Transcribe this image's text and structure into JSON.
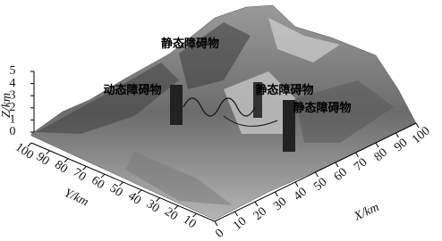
{
  "chart_data": {
    "type": "surface3d",
    "xlabel": "X/km",
    "ylabel": "Y/km",
    "zlabel": "Z/km",
    "xlim": [
      0,
      100
    ],
    "xticks": [
      0,
      10,
      20,
      30,
      40,
      50,
      60,
      70,
      80,
      90,
      100
    ],
    "ylim": [
      0,
      100
    ],
    "yticks": [
      10,
      20,
      30,
      40,
      50,
      60,
      70,
      80,
      90,
      100
    ],
    "zlim": [
      0,
      5
    ],
    "zticks": [
      0,
      1,
      2,
      3,
      4,
      5
    ],
    "annotations": [
      "静态障碍物",
      "动态障碍物",
      "静态障碍物",
      "静态障碍物"
    ]
  }
}
